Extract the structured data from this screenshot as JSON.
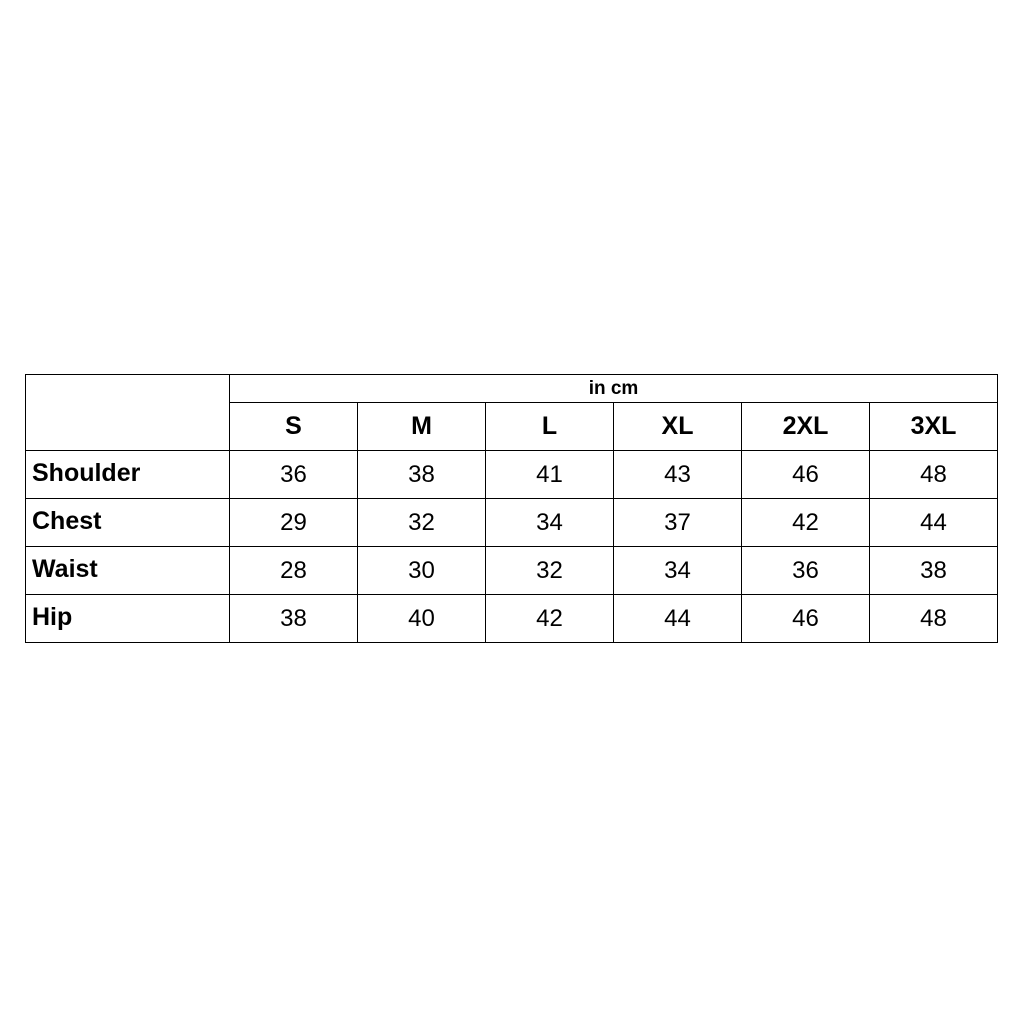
{
  "table": {
    "unit": "in cm",
    "sizes": [
      "S",
      "M",
      "L",
      "XL",
      "2XL",
      "3XL"
    ],
    "rows": [
      {
        "label": "Shoulder",
        "values": [
          "36",
          "38",
          "41",
          "43",
          "46",
          "48"
        ]
      },
      {
        "label": "Chest",
        "values": [
          "29",
          "32",
          "34",
          "37",
          "42",
          "44"
        ]
      },
      {
        "label": "Waist",
        "values": [
          "28",
          "30",
          "32",
          "34",
          "36",
          "38"
        ]
      },
      {
        "label": "Hip",
        "values": [
          "38",
          "40",
          "42",
          "44",
          "46",
          "48"
        ]
      }
    ]
  }
}
